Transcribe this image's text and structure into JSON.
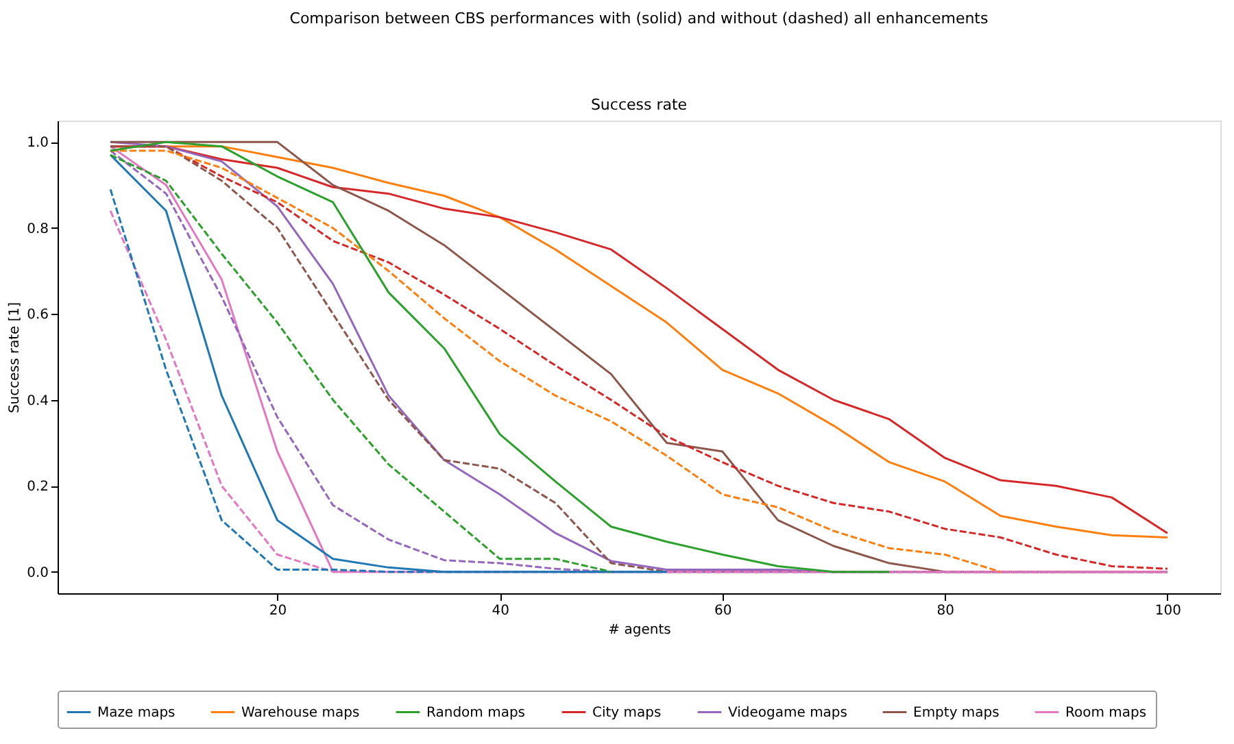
{
  "chart_data": {
    "type": "line",
    "title": "Comparison between CBS performances with (solid) and without (dashed) all enhancements",
    "subtitle": "Success rate",
    "xlabel": "# agents",
    "ylabel": "Success rate [1]",
    "x": [
      5,
      10,
      15,
      20,
      25,
      30,
      35,
      40,
      45,
      50,
      55,
      60,
      65,
      70,
      75,
      80,
      85,
      90,
      95,
      100
    ],
    "xlim": [
      0.25,
      104.75
    ],
    "xticks": [
      20,
      40,
      60,
      80,
      100
    ],
    "ylim": [
      -0.05,
      1.05
    ],
    "yticks": [
      {
        "value": 0,
        "label": "0.0"
      },
      {
        "value": 0.2,
        "label": "0.2"
      },
      {
        "value": 0.4,
        "label": "0.4"
      },
      {
        "value": 0.6,
        "label": "0.6"
      },
      {
        "value": 0.8,
        "label": "0.8"
      },
      {
        "value": 1,
        "label": "1.0"
      }
    ],
    "legend": "bottom",
    "grid": false,
    "marker": "none",
    "series": [
      {
        "name": "Maze maps",
        "color": "#1f77b4",
        "line_style": "solid",
        "values": [
          0.97,
          0.84,
          0.41,
          0.12,
          0.03,
          0.01,
          0,
          0,
          0,
          0,
          0,
          null,
          null,
          null,
          null,
          null,
          null,
          null,
          null,
          null
        ]
      },
      {
        "name": "Warehouse maps",
        "color": "#ff7f0e",
        "line_style": "solid",
        "values": [
          0.99,
          0.99,
          0.99,
          0.965,
          0.94,
          0.905,
          0.875,
          0.825,
          0.75,
          0.665,
          0.58,
          0.47,
          0.415,
          0.34,
          0.255,
          0.21,
          0.13,
          0.105,
          0.085,
          0.08
        ]
      },
      {
        "name": "Random maps",
        "color": "#2ca02c",
        "line_style": "solid",
        "values": [
          0.98,
          1.0,
          0.99,
          0.92,
          0.86,
          0.65,
          0.52,
          0.32,
          0.21,
          0.105,
          0.07,
          0.04,
          0.013,
          0,
          0,
          null,
          null,
          null,
          null,
          null
        ]
      },
      {
        "name": "City maps",
        "color": "#d62728",
        "line_style": "solid",
        "values": [
          0.99,
          0.99,
          0.96,
          0.94,
          0.895,
          0.88,
          0.845,
          0.825,
          0.79,
          0.75,
          0.66,
          0.565,
          0.47,
          0.4,
          0.355,
          0.265,
          0.213,
          0.2,
          0.173,
          0.09
        ]
      },
      {
        "name": "Videogame maps",
        "color": "#9467bd",
        "line_style": "solid",
        "values": [
          1.0,
          0.99,
          0.955,
          0.85,
          0.67,
          0.41,
          0.26,
          0.18,
          0.09,
          0.025,
          0.005,
          0.005,
          0.005,
          0,
          0,
          0,
          0,
          0,
          0,
          0
        ]
      },
      {
        "name": "Empty maps",
        "color": "#8c564b",
        "line_style": "solid",
        "values": [
          1.0,
          1.0,
          1.0,
          1.0,
          0.9,
          0.84,
          0.76,
          0.66,
          0.56,
          0.46,
          0.3,
          0.28,
          0.12,
          0.06,
          0.02,
          0,
          0,
          0,
          0,
          0
        ]
      },
      {
        "name": "Room maps",
        "color": "#e377c2",
        "line_style": "solid",
        "values": [
          0.99,
          0.9,
          0.68,
          0.28,
          0,
          0,
          0,
          0,
          0,
          0,
          0,
          0,
          0,
          0,
          0,
          0,
          0,
          0,
          0,
          0
        ]
      },
      {
        "color": "#1f77b4",
        "line_style": "dashed",
        "values": [
          0.89,
          0.47,
          0.12,
          0.005,
          0.005,
          0,
          0,
          0,
          0,
          0,
          0,
          null,
          null,
          null,
          null,
          null,
          null,
          null,
          null,
          null
        ]
      },
      {
        "color": "#ff7f0e",
        "line_style": "dashed",
        "values": [
          0.98,
          0.98,
          0.94,
          0.87,
          0.8,
          0.7,
          0.59,
          0.49,
          0.41,
          0.35,
          0.27,
          0.18,
          0.15,
          0.095,
          0.055,
          0.04,
          0,
          null,
          null,
          null
        ]
      },
      {
        "color": "#2ca02c",
        "line_style": "dashed",
        "values": [
          0.97,
          0.91,
          0.74,
          0.58,
          0.4,
          0.25,
          0.14,
          0.03,
          0.03,
          0,
          null,
          null,
          null,
          null,
          null,
          null,
          null,
          null,
          null,
          null
        ]
      },
      {
        "color": "#d62728",
        "line_style": "dashed",
        "values": [
          0.99,
          0.99,
          0.92,
          0.86,
          0.77,
          0.72,
          0.645,
          0.565,
          0.48,
          0.4,
          0.315,
          0.255,
          0.2,
          0.16,
          0.14,
          0.1,
          0.08,
          0.04,
          0.013,
          0.007
        ]
      },
      {
        "color": "#9467bd",
        "line_style": "dashed",
        "values": [
          0.98,
          0.88,
          0.64,
          0.36,
          0.155,
          0.075,
          0.027,
          0.02,
          0.007,
          0,
          0,
          0,
          0,
          0,
          0,
          0,
          0,
          0,
          0,
          0
        ]
      },
      {
        "color": "#8c564b",
        "line_style": "dashed",
        "values": [
          0.99,
          0.99,
          0.91,
          0.8,
          0.6,
          0.4,
          0.26,
          0.24,
          0.16,
          0.02,
          0,
          0,
          0,
          0,
          0,
          0,
          0,
          0,
          0,
          0
        ]
      },
      {
        "color": "#e377c2",
        "line_style": "dashed",
        "values": [
          0.84,
          0.54,
          0.2,
          0.04,
          0,
          0,
          0,
          0,
          0,
          0,
          0,
          0,
          0,
          0,
          0,
          0,
          0,
          0,
          0,
          0
        ]
      }
    ]
  }
}
